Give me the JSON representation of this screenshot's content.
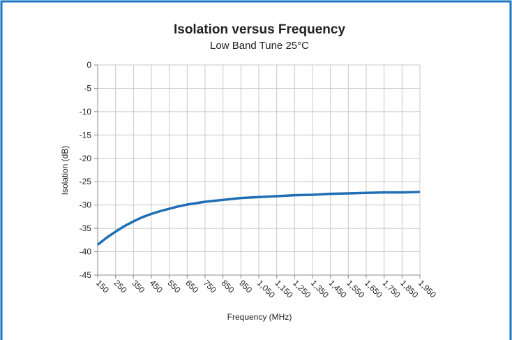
{
  "chart_data": {
    "type": "line",
    "title": "Isolation versus Frequency",
    "subtitle": "Low Band Tune 25°C",
    "x_label": "Frequency (MHz)",
    "y_label": "Isolation (dB)",
    "x": [
      150,
      200,
      250,
      300,
      350,
      400,
      450,
      500,
      550,
      600,
      650,
      700,
      750,
      800,
      850,
      900,
      950,
      1050,
      1150,
      1250,
      1350,
      1450,
      1550,
      1650,
      1750,
      1850,
      1950
    ],
    "series": [
      {
        "name": "Isolation",
        "color": "#1f6fb5",
        "values": [
          -38.5,
          -37.0,
          -35.7,
          -34.5,
          -33.5,
          -32.6,
          -31.9,
          -31.3,
          -30.8,
          -30.3,
          -29.9,
          -29.6,
          -29.3,
          -29.1,
          -28.9,
          -28.7,
          -28.5,
          -28.3,
          -28.1,
          -27.9,
          -27.8,
          -27.6,
          -27.5,
          -27.4,
          -27.3,
          -27.3,
          -27.2
        ]
      }
    ],
    "xlim": [
      150,
      1950
    ],
    "xticks": [
      150,
      250,
      350,
      450,
      550,
      650,
      750,
      850,
      950,
      {
        "value": 1050,
        "label": "1,050"
      },
      {
        "value": 1150,
        "label": "1,150"
      },
      {
        "value": 1250,
        "label": "1,250"
      },
      {
        "value": 1350,
        "label": "1,350"
      },
      {
        "value": 1450,
        "label": "1,450"
      },
      {
        "value": 1550,
        "label": "1,550"
      },
      {
        "value": 1650,
        "label": "1,650"
      },
      {
        "value": 1750,
        "label": "1,750"
      },
      {
        "value": 1850,
        "label": "1,850"
      },
      {
        "value": 1950,
        "label": "1,950"
      }
    ],
    "ylim": [
      -45,
      0
    ],
    "yticks": [
      -45,
      -40,
      -35,
      -30,
      -25,
      -20,
      -15,
      -10,
      -5,
      0
    ],
    "grid": true
  }
}
